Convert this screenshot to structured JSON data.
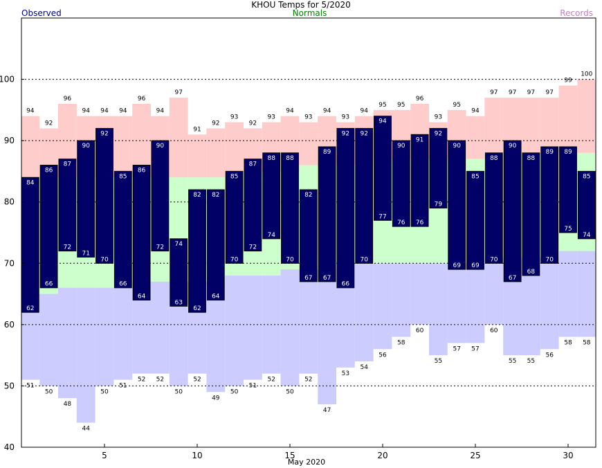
{
  "chart_data": {
    "type": "bar",
    "title": "KHOU Temps for 5/2020",
    "xlabel": "May 2020",
    "ylabel": "",
    "ylim": [
      40,
      110
    ],
    "yticks": [
      40,
      50,
      60,
      70,
      80,
      90,
      100
    ],
    "xticks": [
      5,
      10,
      15,
      20,
      25,
      30
    ],
    "grid": "dotted at 50, 60, 70, 80, 90, 100",
    "legend": [
      "Observed",
      "Normals",
      "Records"
    ],
    "legend_colors": {
      "Observed": "#000080",
      "Normals": "#008000",
      "Records": "#c080c0"
    },
    "colors": {
      "observed": "#000066",
      "record_band": "#ffcccc",
      "normal_band": "#ccffcc",
      "low_band": "#ccccff"
    },
    "days": [
      1,
      2,
      3,
      4,
      5,
      6,
      7,
      8,
      9,
      10,
      11,
      12,
      13,
      14,
      15,
      16,
      17,
      18,
      19,
      20,
      21,
      22,
      23,
      24,
      25,
      26,
      27,
      28,
      29,
      30,
      31
    ],
    "series": [
      {
        "name": "Observed High",
        "values": [
          84,
          86,
          87,
          90,
          92,
          85,
          86,
          90,
          74,
          82,
          82,
          85,
          87,
          88,
          88,
          82,
          89,
          92,
          92,
          94,
          90,
          91,
          92,
          90,
          85,
          88,
          90,
          88,
          89,
          89,
          85
        ]
      },
      {
        "name": "Observed Low",
        "values": [
          62,
          66,
          72,
          71,
          70,
          66,
          64,
          72,
          63,
          62,
          64,
          70,
          72,
          74,
          70,
          67,
          67,
          66,
          70,
          77,
          76,
          76,
          79,
          69,
          69,
          70,
          67,
          68,
          70,
          75,
          74
        ]
      },
      {
        "name": "Record High",
        "values": [
          94,
          92,
          96,
          94,
          94,
          94,
          96,
          94,
          97,
          91,
          92,
          93,
          92,
          93,
          94,
          93,
          94,
          93,
          94,
          95,
          95,
          96,
          93,
          95,
          94,
          97,
          97,
          97,
          97,
          99,
          100
        ]
      },
      {
        "name": "Record Low",
        "values": [
          51,
          50,
          48,
          44,
          50,
          51,
          52,
          52,
          50,
          52,
          49,
          50,
          51,
          52,
          50,
          52,
          47,
          53,
          54,
          56,
          58,
          60,
          55,
          57,
          57,
          60,
          55,
          55,
          56,
          58,
          58
        ]
      },
      {
        "name": "Normal High",
        "values": [
          84,
          84,
          84,
          84,
          84,
          84,
          84,
          84,
          84,
          84,
          84,
          85,
          85,
          85,
          85,
          86,
          86,
          86,
          86,
          87,
          87,
          87,
          87,
          87,
          87,
          88,
          88,
          88,
          88,
          88,
          88
        ]
      },
      {
        "name": "Normal Low",
        "values": [
          65,
          65,
          66,
          66,
          66,
          66,
          67,
          67,
          67,
          67,
          67,
          68,
          68,
          68,
          69,
          69,
          69,
          70,
          70,
          70,
          70,
          70,
          70,
          70,
          70,
          71,
          71,
          71,
          71,
          72,
          72
        ]
      }
    ]
  }
}
